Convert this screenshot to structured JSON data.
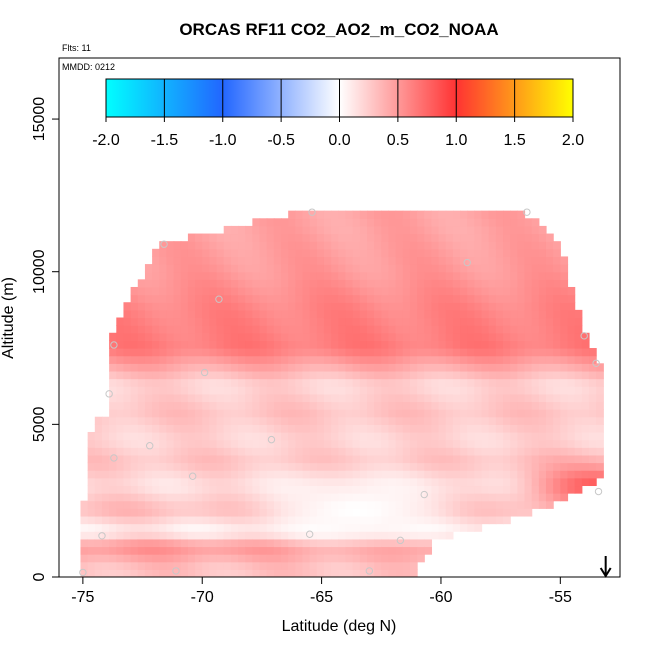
{
  "title": "ORCAS RF11 CO2_AO2_m_CO2_NOAA",
  "flights_label": "Flts: 11",
  "date_label": "MMDD: 0212",
  "chart_data": {
    "type": "heatmap",
    "title": "ORCAS RF11 CO2_AO2_m_CO2_NOAA",
    "xlabel": "Latitude (deg N)",
    "ylabel": "Altitude (m)",
    "xlim": [
      -76,
      -52.5
    ],
    "ylim": [
      0,
      17000
    ],
    "x_ticks": [
      -75,
      -70,
      -65,
      -60,
      -55
    ],
    "x_tick_labels": [
      "-75",
      "-70",
      "-65",
      "-60",
      "-55"
    ],
    "y_ticks": [
      0,
      5000,
      10000,
      15000
    ],
    "y_tick_labels": [
      "0",
      "5000",
      "10000",
      "15000"
    ],
    "colorbar": {
      "range": [
        -2.0,
        2.0
      ],
      "ticks": [
        -2.0,
        -1.5,
        -1.0,
        -0.5,
        0.0,
        0.5,
        1.0,
        1.5,
        2.0
      ],
      "tick_labels": [
        "-2.0",
        "-1.5",
        "-1.0",
        "-0.5",
        "0.0",
        "0.5",
        "1.0",
        "1.5",
        "2.0"
      ],
      "colors": [
        "#00ffff",
        "#2266ff",
        "#ffffff",
        "#ff3333",
        "#ffff00"
      ]
    },
    "data_region_outline": [
      [
        -75.2,
        0
      ],
      [
        -61.2,
        0
      ],
      [
        -60.3,
        1200
      ],
      [
        -57.3,
        1800
      ],
      [
        -55.5,
        2300
      ],
      [
        -53.2,
        3300
      ],
      [
        -53.2,
        6900
      ],
      [
        -53.8,
        7700
      ],
      [
        -54.6,
        9500
      ],
      [
        -55.0,
        11000
      ],
      [
        -56.5,
        11950
      ],
      [
        -66.0,
        11950
      ],
      [
        -71.8,
        10900
      ],
      [
        -73.9,
        7900
      ],
      [
        -74.0,
        5200
      ],
      [
        -74.6,
        5200
      ],
      [
        -75.0,
        2200
      ]
    ],
    "altitude_band_values": [
      {
        "altitude": 300,
        "value": 0.3
      },
      {
        "altitude": 1000,
        "value": 0.55
      },
      {
        "altitude": 1500,
        "value": 0.05
      },
      {
        "altitude": 2200,
        "value": 0.35
      },
      {
        "altitude": 3000,
        "value": 0.15
      },
      {
        "altitude": 3800,
        "value": 0.3
      },
      {
        "altitude": 4500,
        "value": 0.2
      },
      {
        "altitude": 5400,
        "value": 0.3
      },
      {
        "altitude": 6300,
        "value": 0.2
      },
      {
        "altitude": 7500,
        "value": 0.65
      },
      {
        "altitude": 8800,
        "value": 0.6
      },
      {
        "altitude": 10000,
        "value": 0.5
      },
      {
        "altitude": 11400,
        "value": 0.45
      }
    ],
    "low_anomaly_zone": {
      "center_lat": -63.5,
      "center_alt": 2200,
      "min_value": 0.0
    },
    "southern_edge_high": {
      "lat": -53.5,
      "alt": 3000,
      "value": 0.8
    },
    "sample_points": [
      [
        -75.0,
        150
      ],
      [
        -74.2,
        1350
      ],
      [
        -73.7,
        3900
      ],
      [
        -73.9,
        6000
      ],
      [
        -73.7,
        7600
      ],
      [
        -72.2,
        4300
      ],
      [
        -71.6,
        10900
      ],
      [
        -71.1,
        200
      ],
      [
        -70.4,
        3300
      ],
      [
        -69.9,
        6700
      ],
      [
        -69.3,
        9100
      ],
      [
        -67.1,
        4500
      ],
      [
        -65.5,
        1400
      ],
      [
        -65.4,
        11950
      ],
      [
        -63.0,
        200
      ],
      [
        -61.7,
        1200
      ],
      [
        -60.7,
        2700
      ],
      [
        -58.9,
        10300
      ],
      [
        -56.4,
        11950
      ],
      [
        -53.4,
        2800
      ],
      [
        -54.0,
        7900
      ],
      [
        -53.5,
        7000
      ]
    ],
    "marker": {
      "type": "arrow-down",
      "lat": -53.1
    }
  }
}
